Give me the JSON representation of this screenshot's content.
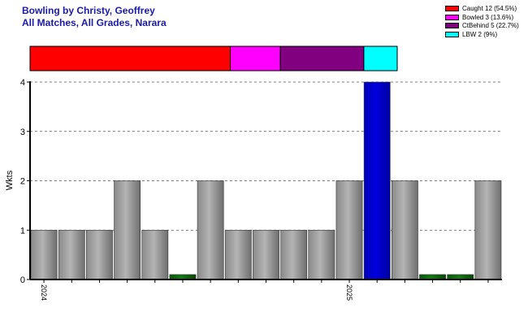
{
  "header": {
    "title": "Bowling by Christy, Geoffrey",
    "subtitle": "All Matches, All Grades, Narara"
  },
  "chart_data": {
    "type": "bar",
    "ylabel": "Wkts",
    "ylim": [
      0,
      4
    ],
    "yticks": [
      "0",
      "1",
      "2",
      "3",
      "4"
    ],
    "grid": "horizontal-dashed",
    "xtick_labels": [
      {
        "label": "2024",
        "at_index": 0
      },
      {
        "label": "2025",
        "at_index": 11
      }
    ],
    "values": [
      1,
      1,
      1,
      2,
      1,
      0.1,
      2,
      1,
      1,
      1,
      1,
      2,
      4,
      2,
      0.1,
      0.1,
      2
    ],
    "bar_colors": [
      "#9a9a9a",
      "#9a9a9a",
      "#9a9a9a",
      "#9a9a9a",
      "#9a9a9a",
      "#0b6a0b",
      "#9a9a9a",
      "#9a9a9a",
      "#9a9a9a",
      "#9a9a9a",
      "#9a9a9a",
      "#9a9a9a",
      "#0000cc",
      "#9a9a9a",
      "#0b6a0b",
      "#0b6a0b",
      "#9a9a9a"
    ],
    "dismissals": [
      {
        "label": "Caught 12 (54.5%)",
        "value": 12,
        "color": "#ff0000"
      },
      {
        "label": "Bowled 3 (13.6%)",
        "value": 3,
        "color": "#ff00ff"
      },
      {
        "label": "CtBehind 5 (22.7%)",
        "value": 5,
        "color": "#800080"
      },
      {
        "label": "LBW 2 (9%)",
        "value": 2,
        "color": "#00ffff"
      }
    ]
  }
}
